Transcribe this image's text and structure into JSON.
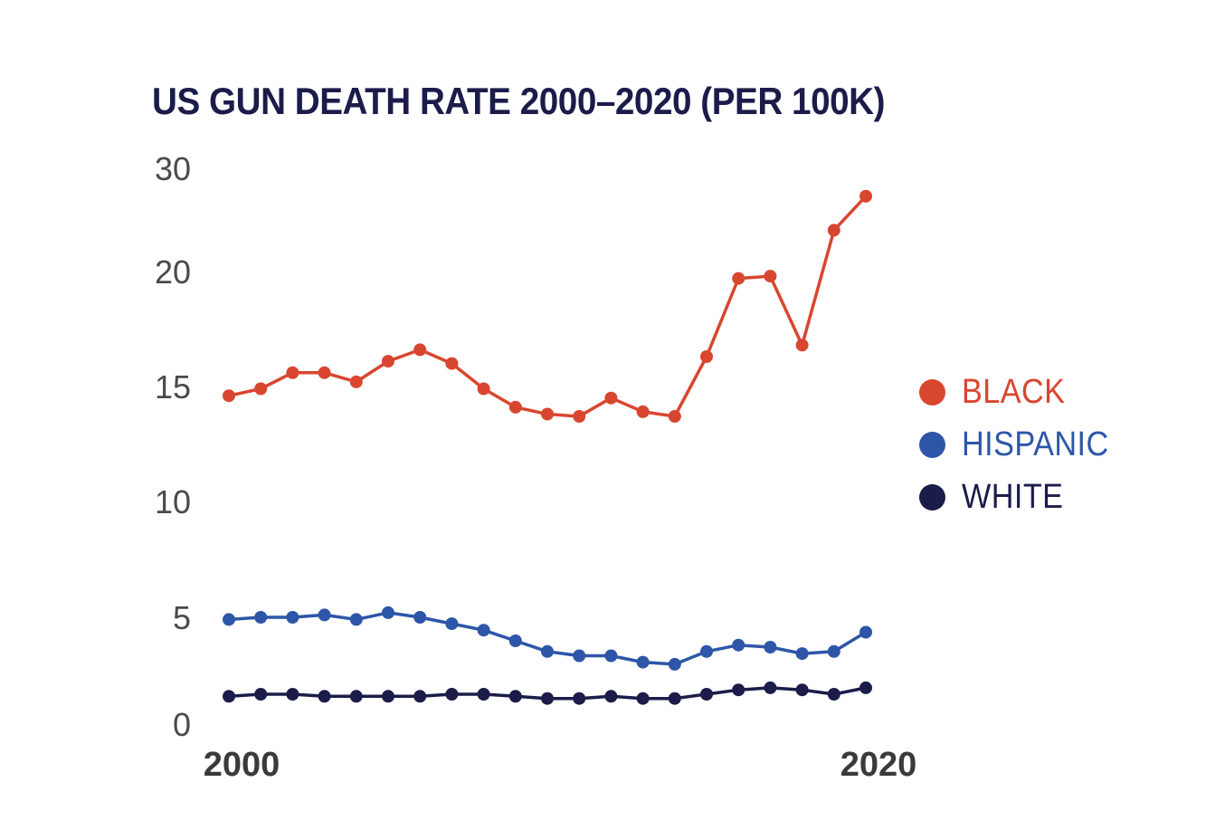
{
  "chart_data": {
    "type": "line",
    "title": "US GUN DEATH RATE 2000–2020 (PER 100K)",
    "xlabel": "",
    "ylabel": "",
    "x": [
      2000,
      2001,
      2002,
      2003,
      2004,
      2005,
      2006,
      2007,
      2008,
      2009,
      2010,
      2011,
      2012,
      2013,
      2014,
      2015,
      2016,
      2017,
      2018,
      2019,
      2020
    ],
    "x_tick_labels": [
      {
        "x": 2000,
        "label": "2000"
      },
      {
        "x": 2020,
        "label": "2020"
      }
    ],
    "y_tick_labels": [
      "0",
      "5",
      "10",
      "15",
      "20",
      "30"
    ],
    "legend_position": "right",
    "grid": false,
    "series": [
      {
        "name": "BLACK",
        "color": "#d9462f",
        "values": [
          14.6,
          14.9,
          15.6,
          15.6,
          15.2,
          16.1,
          16.6,
          16.0,
          14.9,
          14.1,
          13.8,
          13.7,
          14.5,
          13.9,
          13.7,
          16.3,
          19.7,
          19.8,
          16.8,
          24.0,
          27.3
        ]
      },
      {
        "name": "HISPANIC",
        "color": "#2d56a8",
        "values": [
          4.9,
          5.0,
          5.0,
          5.1,
          4.9,
          5.2,
          5.0,
          4.7,
          4.4,
          3.9,
          3.4,
          3.2,
          3.2,
          2.9,
          2.8,
          3.4,
          3.7,
          3.6,
          3.3,
          3.4,
          4.3
        ]
      },
      {
        "name": "WHITE",
        "color": "#1b1c4a",
        "values": [
          1.3,
          1.4,
          1.4,
          1.3,
          1.3,
          1.3,
          1.3,
          1.4,
          1.4,
          1.3,
          1.2,
          1.2,
          1.3,
          1.2,
          1.2,
          1.4,
          1.6,
          1.7,
          1.6,
          1.4,
          1.7
        ]
      }
    ]
  }
}
